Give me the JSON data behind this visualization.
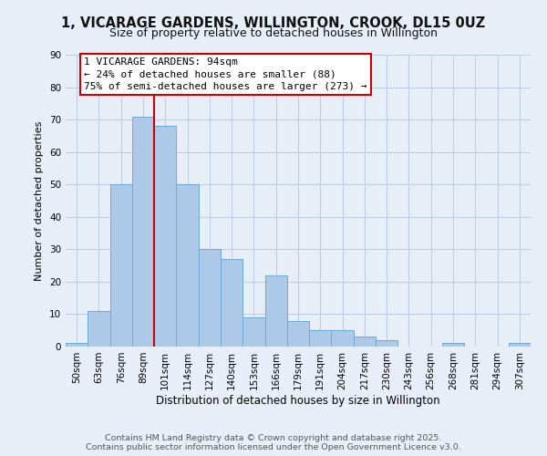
{
  "title": "1, VICARAGE GARDENS, WILLINGTON, CROOK, DL15 0UZ",
  "subtitle": "Size of property relative to detached houses in Willington",
  "xlabel": "Distribution of detached houses by size in Willington",
  "ylabel": "Number of detached properties",
  "bar_labels": [
    "50sqm",
    "63sqm",
    "76sqm",
    "89sqm",
    "101sqm",
    "114sqm",
    "127sqm",
    "140sqm",
    "153sqm",
    "166sqm",
    "179sqm",
    "191sqm",
    "204sqm",
    "217sqm",
    "230sqm",
    "243sqm",
    "256sqm",
    "268sqm",
    "281sqm",
    "294sqm",
    "307sqm"
  ],
  "bar_values": [
    1,
    11,
    50,
    71,
    68,
    50,
    30,
    27,
    9,
    22,
    8,
    5,
    5,
    3,
    2,
    0,
    0,
    1,
    0,
    0,
    1
  ],
  "bar_color": "#adc9e8",
  "bar_edge_color": "#6aaad4",
  "bar_width": 1.0,
  "ylim": [
    0,
    90
  ],
  "yticks": [
    0,
    10,
    20,
    30,
    40,
    50,
    60,
    70,
    80,
    90
  ],
  "vline_x": 3.5,
  "vline_color": "#cc0000",
  "annotation_text": "1 VICARAGE GARDENS: 94sqm\n← 24% of detached houses are smaller (88)\n75% of semi-detached houses are larger (273) →",
  "annotation_box_color": "#ffffff",
  "annotation_box_edge": "#cc0000",
  "footer1": "Contains HM Land Registry data © Crown copyright and database right 2025.",
  "footer2": "Contains public sector information licensed under the Open Government Licence v3.0.",
  "bg_color": "#e8eef8",
  "grid_color": "#c0cce0",
  "title_fontsize": 10.5,
  "subtitle_fontsize": 9,
  "annotation_fontsize": 8,
  "xlabel_fontsize": 8.5,
  "ylabel_fontsize": 8,
  "tick_fontsize": 7.5,
  "footer_fontsize": 6.8
}
